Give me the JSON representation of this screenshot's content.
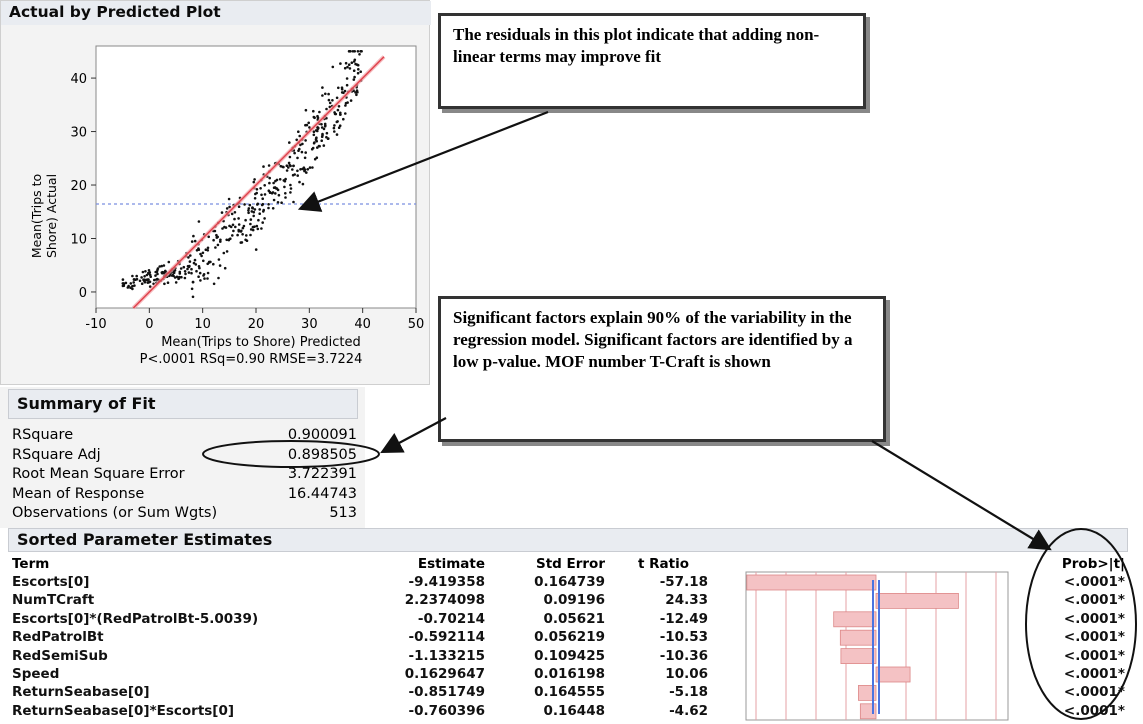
{
  "plot": {
    "header": "Actual by Predicted Plot",
    "xlabel": "Mean(Trips to Shore) Predicted",
    "ylabel_line1": "Mean(Trips to",
    "ylabel_line2": "Shore) Actual",
    "stats": "P<.0001 RSq=0.90 RMSE=3.7224",
    "x_ticks": [
      "-10",
      "0",
      "10",
      "20",
      "30",
      "40",
      "50"
    ],
    "y_ticks": [
      "0",
      "10",
      "20",
      "30",
      "40"
    ]
  },
  "chart_data": {
    "type": "scatter",
    "title": "Actual by Predicted Plot",
    "xlabel": "Mean(Trips to Shore) Predicted",
    "ylabel": "Mean(Trips to Shore) Actual",
    "xlim": [
      -10,
      50
    ],
    "ylim": [
      -3,
      46
    ],
    "x_ticks": [
      -10,
      0,
      10,
      20,
      30,
      40,
      50
    ],
    "y_ticks": [
      0,
      10,
      20,
      30,
      40
    ],
    "fit_line": {
      "x": [
        -3,
        44
      ],
      "y": [
        -3,
        44
      ],
      "color": "#e0404a"
    },
    "mean_line": {
      "y": 16.44743,
      "color": "#7a8fe0"
    },
    "point_count": 513,
    "point_color": "#111111",
    "grid": false
  },
  "callouts": {
    "top": "The residuals in this plot indicate that adding non-linear terms may improve fit",
    "mid": "Significant factors explain 90% of the variability in the regression model. Significant factors are identified by a low p-value. MOF number T-Craft is shown"
  },
  "fit": {
    "header": "Summary of Fit",
    "rows": [
      {
        "label": "RSquare",
        "value": "0.900091"
      },
      {
        "label": "RSquare Adj",
        "value": "0.898505"
      },
      {
        "label": "Root Mean Square Error",
        "value": "3.722391"
      },
      {
        "label": "Mean of Response",
        "value": "16.44743"
      },
      {
        "label": "Observations (or Sum Wgts)",
        "value": "513"
      }
    ]
  },
  "estimates": {
    "header": "Sorted Parameter Estimates",
    "columns": {
      "term": "Term",
      "estimate": "Estimate",
      "stderr": "Std Error",
      "tratio": "t Ratio",
      "prob": "Prob>|t|"
    },
    "rows": [
      {
        "term": "Escorts[0]",
        "estimate": "-9.419358",
        "stderr": "0.164739",
        "tratio": "-57.18",
        "t": -57.18,
        "prob": "<.0001*"
      },
      {
        "term": "NumTCraft",
        "estimate": "2.2374098",
        "stderr": "0.09196",
        "tratio": "24.33",
        "t": 24.33,
        "prob": "<.0001*"
      },
      {
        "term": "Escorts[0]*(RedPatrolBt-5.0039)",
        "estimate": "-0.70214",
        "stderr": "0.05621",
        "tratio": "-12.49",
        "t": -12.49,
        "prob": "<.0001*"
      },
      {
        "term": "RedPatrolBt",
        "estimate": "-0.592114",
        "stderr": "0.056219",
        "tratio": "-10.53",
        "t": -10.53,
        "prob": "<.0001*"
      },
      {
        "term": "RedSemiSub",
        "estimate": "-1.133215",
        "stderr": "0.109425",
        "tratio": "-10.36",
        "t": -10.36,
        "prob": "<.0001*"
      },
      {
        "term": "Speed",
        "estimate": "0.1629647",
        "stderr": "0.016198",
        "tratio": "10.06",
        "t": 10.06,
        "prob": "<.0001*"
      },
      {
        "term": "ReturnSeabase[0]",
        "estimate": "-0.851749",
        "stderr": "0.164555",
        "tratio": "-5.18",
        "t": -5.18,
        "prob": "<.0001*"
      },
      {
        "term": "ReturnSeabase[0]*Escorts[0]",
        "estimate": "-0.760396",
        "stderr": "0.16448",
        "tratio": "-4.62",
        "t": -4.62,
        "prob": "<.0001*"
      }
    ],
    "bar_color": "#f4c2c4",
    "ref_line_color": "#4a74e0"
  }
}
